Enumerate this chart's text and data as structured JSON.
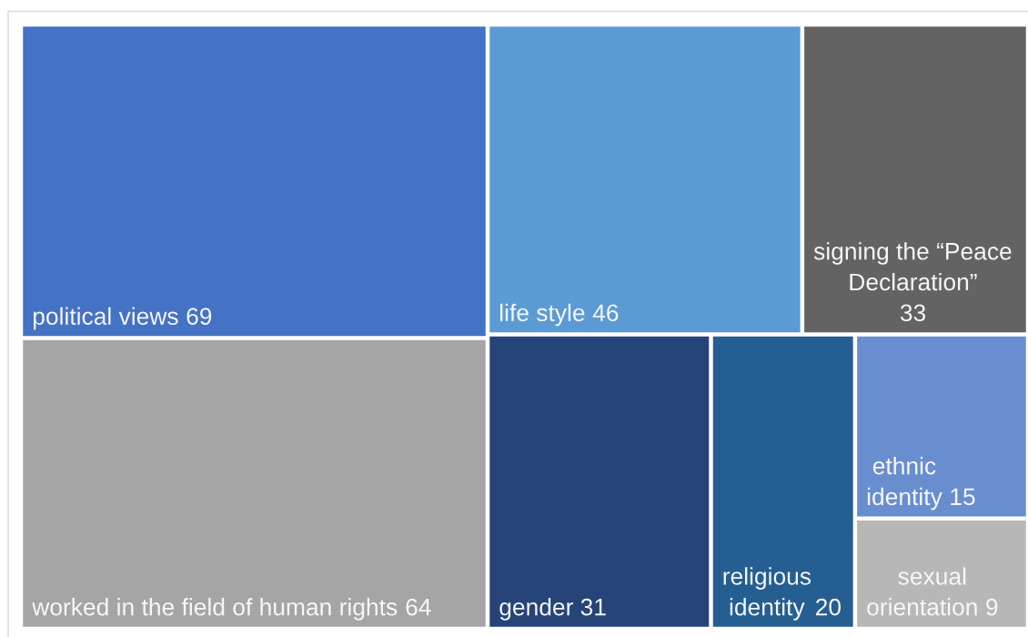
{
  "chart_data": {
    "type": "other",
    "categories": [
      "political views",
      "worked in the field of human rights",
      "life style",
      "signing the “Peace Declaration”",
      "gender",
      "religious identity",
      "ethnic identity",
      "sexual orientation"
    ],
    "values": [
      69,
      64,
      46,
      33,
      31,
      20,
      15,
      9
    ],
    "colors": [
      "#4472c4",
      "#a5a5a5",
      "#5b9bd5",
      "#636363",
      "#264478",
      "#255e91",
      "#698ed0",
      "#b7b7b7"
    ],
    "data_labels": true
  }
}
